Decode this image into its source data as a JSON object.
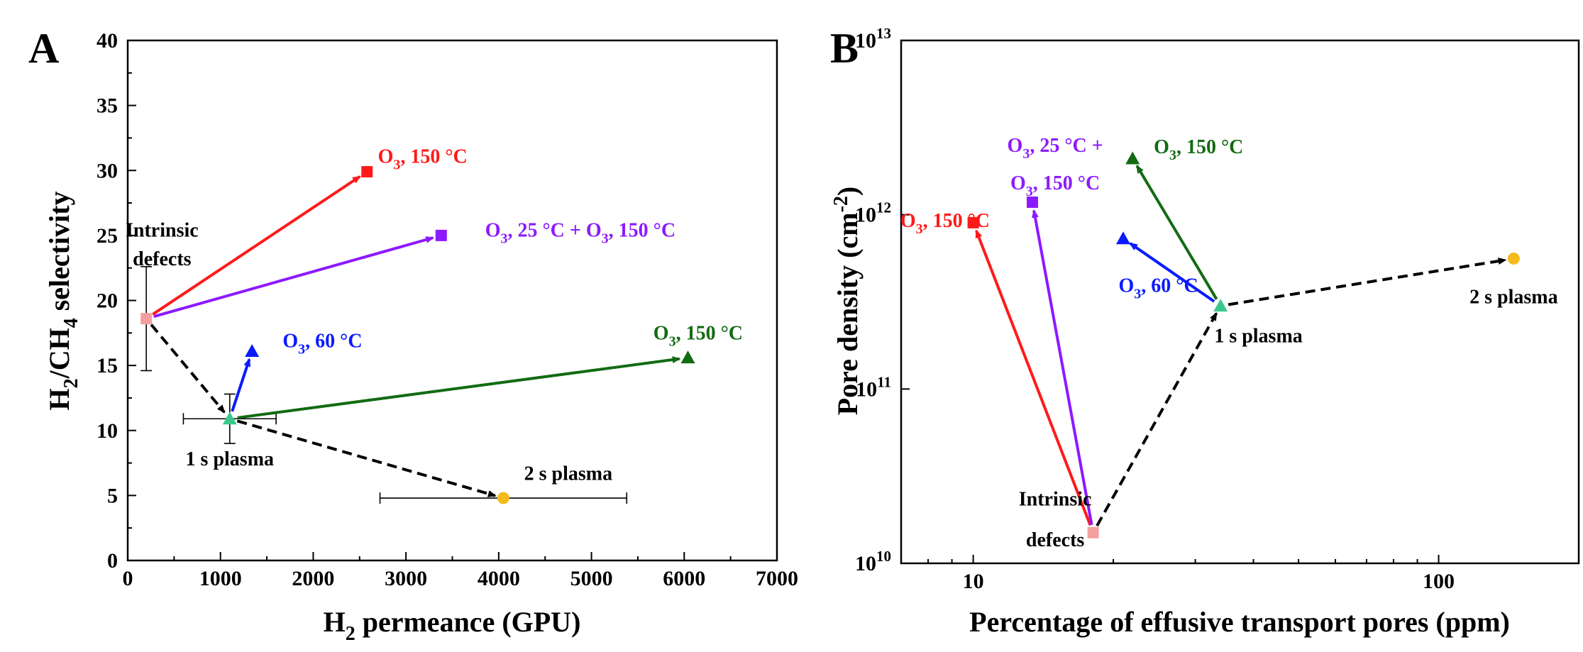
{
  "chart_data": [
    {
      "panel": "A",
      "type": "scatter",
      "xlabel": {
        "main": "H",
        "sub": "2",
        "rest": " permeance (GPU)"
      },
      "ylabel": {
        "p1": "H",
        "s1": "2",
        "p2": "/CH",
        "s2": "4",
        "p3": " selectivity"
      },
      "xlim": [
        0,
        7000
      ],
      "ylim": [
        0,
        40
      ],
      "xticks": [
        0,
        1000,
        2000,
        3000,
        4000,
        5000,
        6000,
        7000
      ],
      "yticks": [
        0,
        5,
        10,
        15,
        20,
        25,
        30,
        35,
        40
      ],
      "points": [
        {
          "id": "intrinsic",
          "x": 200,
          "y": 18.6,
          "marker": "square",
          "color": "#f4a0a0",
          "xerr": 0,
          "yerr": 4.0
        },
        {
          "id": "plasma1",
          "x": 1100,
          "y": 10.9,
          "marker": "triangle",
          "color": "#3cc88c",
          "xerr": 500,
          "yerr": 1.9
        },
        {
          "id": "plasma2",
          "x": 4050,
          "y": 4.8,
          "marker": "circle",
          "color": "#f5bb1c",
          "xerr": 1330,
          "yerr": 0
        },
        {
          "id": "o3_150_from_intrinsic",
          "x": 2580,
          "y": 29.9,
          "marker": "square",
          "color": "#ff1a1a"
        },
        {
          "id": "o3_25_150_from_intrinsic",
          "x": 3380,
          "y": 25.0,
          "marker": "square",
          "color": "#8c1aff"
        },
        {
          "id": "o3_60_from_plasma1",
          "x": 1340,
          "y": 16.1,
          "marker": "triangle",
          "color": "#0a1aff"
        },
        {
          "id": "o3_150_from_plasma1",
          "x": 6040,
          "y": 15.6,
          "marker": "triangle",
          "color": "#126b12"
        }
      ],
      "arrows": [
        {
          "from": "intrinsic",
          "to": "o3_150_from_intrinsic",
          "color": "#ff1a1a",
          "dashed": false
        },
        {
          "from": "intrinsic",
          "to": "o3_25_150_from_intrinsic",
          "color": "#8c1aff",
          "dashed": false
        },
        {
          "from": "intrinsic",
          "to": "plasma1",
          "color": "#000000",
          "dashed": true
        },
        {
          "from": "plasma1",
          "to": "o3_60_from_plasma1",
          "color": "#0a1aff",
          "dashed": false
        },
        {
          "from": "plasma1",
          "to": "o3_150_from_plasma1",
          "color": "#126b12",
          "dashed": false
        },
        {
          "from": "plasma1",
          "to": "plasma2",
          "color": "#000000",
          "dashed": true
        }
      ],
      "annotations": [
        {
          "parts": [
            {
              "t": "Intrinsic"
            }
          ],
          "x": 370,
          "y": 24.9,
          "color": "#000000"
        },
        {
          "parts": [
            {
              "t": "defects"
            }
          ],
          "x": 370,
          "y": 22.7,
          "color": "#000000"
        },
        {
          "parts": [
            {
              "t": "1 s plasma"
            }
          ],
          "x": 1100,
          "y": 7.3,
          "color": "#000000"
        },
        {
          "parts": [
            {
              "t": "2 s plasma"
            }
          ],
          "x": 4750,
          "y": 6.2,
          "color": "#000000"
        },
        {
          "parts": [
            {
              "t": "O"
            },
            {
              "t": "3",
              "sub": true
            },
            {
              "t": ", 150 °C"
            }
          ],
          "x": 3180,
          "y": 30.6,
          "color": "#ff1a1a"
        },
        {
          "parts": [
            {
              "t": "O"
            },
            {
              "t": "3",
              "sub": true
            },
            {
              "t": ", 25 °C + O"
            },
            {
              "t": "3",
              "sub": true
            },
            {
              "t": ", 150 °C"
            }
          ],
          "x": 4880,
          "y": 24.9,
          "color": "#8c1aff"
        },
        {
          "parts": [
            {
              "t": "O"
            },
            {
              "t": "3",
              "sub": true
            },
            {
              "t": ", 60 °C"
            }
          ],
          "x": 2100,
          "y": 16.4,
          "color": "#0a1aff"
        },
        {
          "parts": [
            {
              "t": "O"
            },
            {
              "t": "3",
              "sub": true
            },
            {
              "t": ", 150 °C"
            }
          ],
          "x": 6150,
          "y": 17.0,
          "color": "#126b12"
        }
      ]
    },
    {
      "panel": "B",
      "type": "scatter",
      "xscale": "log",
      "yscale": "log",
      "xlabel": "Percentage of effusive transport pores (ppm)",
      "ylabel": {
        "main": "Pore density (cm",
        "sup": "-2",
        "end": ")"
      },
      "xlim": [
        7,
        200
      ],
      "ylim": [
        10000000000,
        10000000000000
      ],
      "xticks": [
        {
          "v": 10,
          "label": "10"
        },
        {
          "v": 100,
          "label": "100"
        }
      ],
      "xminor": [
        7,
        8,
        9,
        20,
        30,
        40,
        50,
        60,
        70,
        80,
        90,
        200
      ],
      "yticks": [
        {
          "v": 10000000000,
          "base": "10",
          "exp": "10"
        },
        {
          "v": 100000000000,
          "base": "10",
          "exp": "11"
        },
        {
          "v": 1000000000000,
          "base": "10",
          "exp": "12"
        },
        {
          "v": 10000000000000,
          "base": "10",
          "exp": "13"
        }
      ],
      "points": [
        {
          "id": "intrinsic",
          "x": 18.1,
          "y": 15000000000,
          "marker": "square",
          "color": "#f4a0a0"
        },
        {
          "id": "plasma1",
          "x": 34.0,
          "y": 300000000000,
          "marker": "triangle",
          "color": "#3cc88c"
        },
        {
          "id": "plasma2",
          "x": 145,
          "y": 560000000000,
          "marker": "circle",
          "color": "#f5bb1c"
        },
        {
          "id": "o3_150_from_intrinsic",
          "x": 10.0,
          "y": 900000000000,
          "marker": "square",
          "color": "#ff1a1a"
        },
        {
          "id": "o3_25_150_from_intrinsic",
          "x": 13.4,
          "y": 1180000000000,
          "marker": "square",
          "color": "#8c1aff"
        },
        {
          "id": "o3_60_from_plasma1",
          "x": 21.0,
          "y": 730000000000,
          "marker": "triangle",
          "color": "#0a1aff"
        },
        {
          "id": "o3_150_from_plasma1",
          "x": 22.0,
          "y": 2100000000000,
          "marker": "triangle",
          "color": "#126b12"
        }
      ],
      "arrows": [
        {
          "from": "intrinsic",
          "to": "o3_150_from_intrinsic",
          "color": "#ff1a1a",
          "dashed": false
        },
        {
          "from": "intrinsic",
          "to": "o3_25_150_from_intrinsic",
          "color": "#8c1aff",
          "dashed": false
        },
        {
          "from": "intrinsic",
          "to": "plasma1",
          "color": "#000000",
          "dashed": true
        },
        {
          "from": "plasma1",
          "to": "o3_60_from_plasma1",
          "color": "#0a1aff",
          "dashed": false
        },
        {
          "from": "plasma1",
          "to": "o3_150_from_plasma1",
          "color": "#126b12",
          "dashed": false
        },
        {
          "from": "plasma1",
          "to": "plasma2",
          "color": "#000000",
          "dashed": true
        }
      ],
      "annotations": [
        {
          "parts": [
            {
              "t": "Intrinsic"
            }
          ],
          "x": 15.0,
          "y": 21500000000,
          "color": "#000000"
        },
        {
          "parts": [
            {
              "t": "defects"
            }
          ],
          "x": 15.0,
          "y": 12500000000,
          "color": "#000000"
        },
        {
          "parts": [
            {
              "t": "1 s plasma"
            }
          ],
          "x": 41.0,
          "y": 185000000000,
          "color": "#000000"
        },
        {
          "parts": [
            {
              "t": "2 s plasma"
            }
          ],
          "x": 145,
          "y": 310000000000,
          "color": "#000000"
        },
        {
          "parts": [
            {
              "t": "O"
            },
            {
              "t": "3",
              "sub": true
            },
            {
              "t": ", 150 °C"
            }
          ],
          "x": 8.7,
          "y": 850000000000,
          "color": "#ff1a1a"
        },
        {
          "parts": [
            {
              "t": "O"
            },
            {
              "t": "3",
              "sub": true
            },
            {
              "t": ", 25 °C +"
            }
          ],
          "x": 15.0,
          "y": 2300000000000,
          "color": "#8c1aff"
        },
        {
          "parts": [
            {
              "t": "O"
            },
            {
              "t": "3",
              "sub": true
            },
            {
              "t": ", 150 °C"
            }
          ],
          "x": 15.0,
          "y": 1400000000000,
          "color": "#8c1aff"
        },
        {
          "parts": [
            {
              "t": "O"
            },
            {
              "t": "3",
              "sub": true
            },
            {
              "t": ", 60 °C"
            }
          ],
          "x": 25.0,
          "y": 360000000000,
          "color": "#0a1aff"
        },
        {
          "parts": [
            {
              "t": "O"
            },
            {
              "t": "3",
              "sub": true
            },
            {
              "t": ", 150 °C"
            }
          ],
          "x": 30.5,
          "y": 2250000000000,
          "color": "#126b12"
        }
      ]
    }
  ],
  "panel_labels": {
    "a": "A",
    "b": "B"
  }
}
